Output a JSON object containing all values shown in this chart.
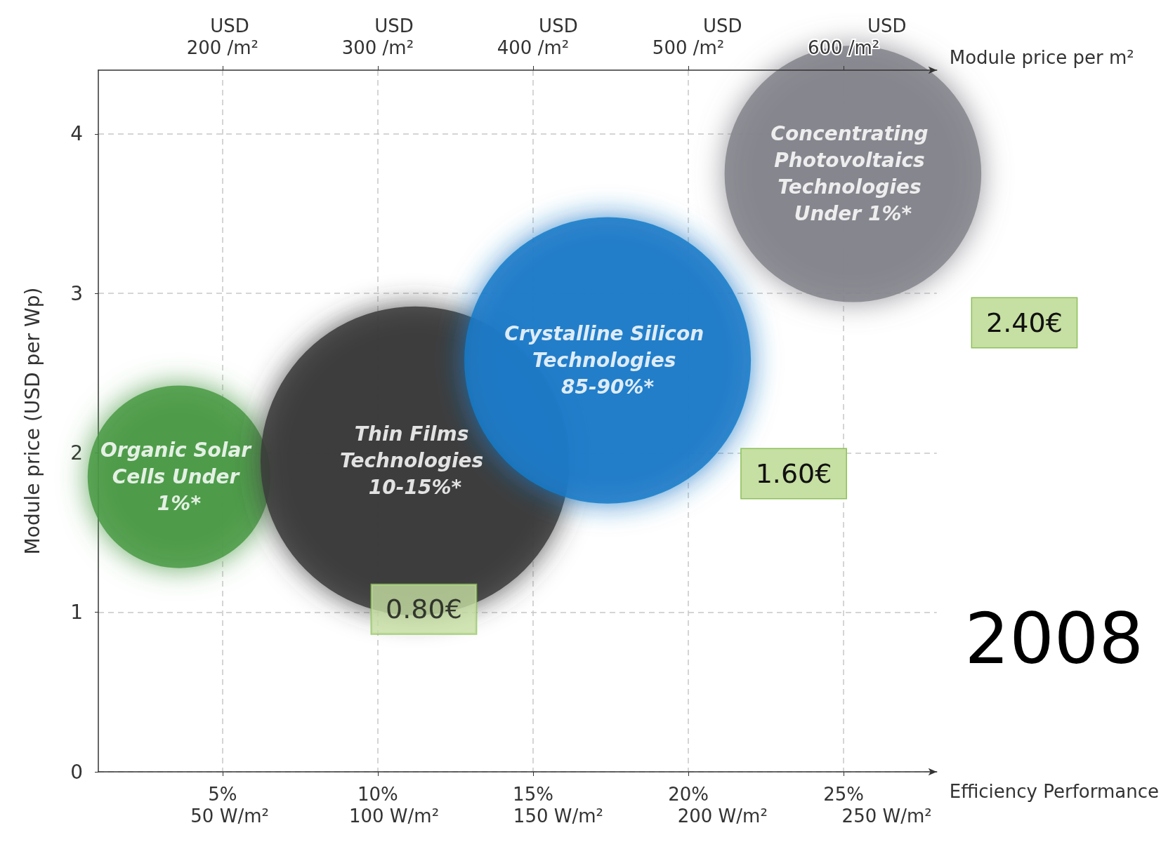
{
  "chart_data": {
    "type": "bubble",
    "xlabel": "Efficiency Performance",
    "x2label": "Module price per m²",
    "ylabel": "Module price (USD per Wp)",
    "xlim": [
      1,
      28
    ],
    "x2lim": [
      120,
      660
    ],
    "ylim": [
      0,
      4.4
    ],
    "xticks": [
      {
        "value": 5,
        "label": "5%"
      },
      {
        "value": 10,
        "label": "10%"
      },
      {
        "value": 15,
        "label": "15%"
      },
      {
        "value": 20,
        "label": "20%"
      },
      {
        "value": 25,
        "label": "25%"
      }
    ],
    "x2ticks": [
      {
        "value": 200,
        "label": "200 /m²"
      },
      {
        "value": 300,
        "label": "300 /m²"
      },
      {
        "value": 400,
        "label": "400 /m²"
      },
      {
        "value": 500,
        "label": "500 /m²"
      },
      {
        "value": 600,
        "label": "600 /m²"
      }
    ],
    "yticks": [
      0,
      1,
      2,
      3,
      4
    ],
    "grid": true,
    "legend": false,
    "series": [
      {
        "name": "Organic Solar Cells Under 1%*",
        "color": "#4a9a45",
        "x": [
          3.6
        ],
        "values": [
          1.85
        ],
        "sizes": [
          0.35
        ]
      },
      {
        "name": "Thin Films Technologies 10-15%*",
        "color": "#3a3a3a",
        "x": [
          11.2
        ],
        "values": [
          1.95
        ],
        "sizes": [
          1
        ]
      },
      {
        "name": "Crystalline Silicon Technologies 85-90%*",
        "color": "#1a7ac8",
        "x": [
          17.4
        ],
        "values": [
          2.58
        ],
        "sizes": [
          0.86
        ]
      },
      {
        "name": "Concentrating Photovoltaics Technologies Under 1%*",
        "color": "#84848c",
        "x": [
          25.3
        ],
        "values": [
          3.75
        ],
        "sizes": [
          0.69
        ]
      }
    ],
    "annotations": [
      {
        "text": "0.80€",
        "x": 9.8,
        "y": 1.02
      },
      "50 W/m²",
      "100 W/m²",
      "150 W/m²",
      "200 W/m²",
      "250 W/m²",
      "USD",
      "USD",
      "USD",
      "USD",
      "USD",
      "1.60€",
      "2.40€",
      "2008"
    ]
  }
}
